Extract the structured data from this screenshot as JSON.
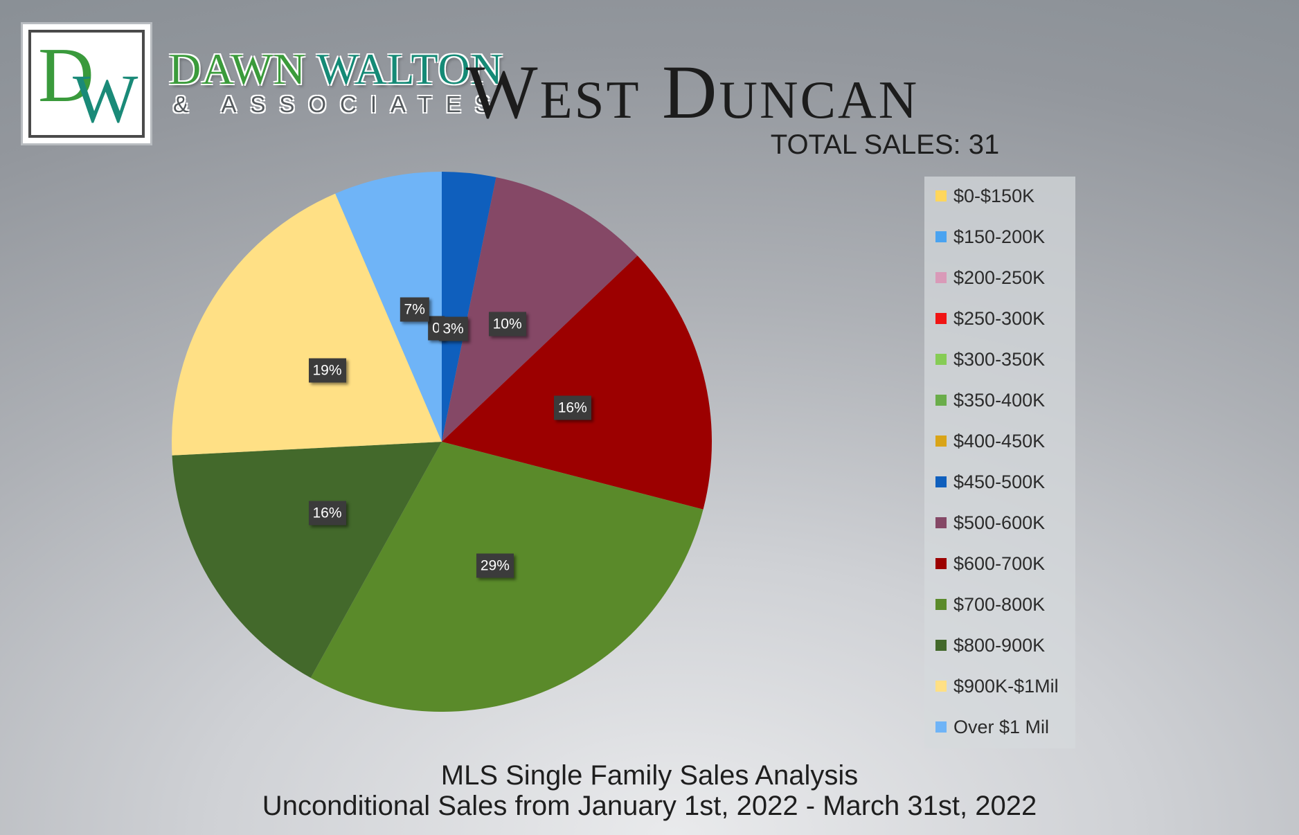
{
  "branding": {
    "logo_letters": "DW",
    "name_part1": "DAWN ",
    "name_part2": "WALTON",
    "tagline": "& ASSOCIATES"
  },
  "header": {
    "title": "West Duncan",
    "total_sales": "TOTAL SALES: 31"
  },
  "footer": {
    "line1": "MLS Single Family Sales Analysis",
    "line2": "Unconditional Sales from January 1st, 2022 - March 31st, 2022"
  },
  "chart_data": {
    "type": "pie",
    "title": "West Duncan",
    "total": 31,
    "legend_position": "right",
    "slices": [
      {
        "name": "$0-$150K",
        "value": 0,
        "label": "",
        "color": "#ffd65c"
      },
      {
        "name": "$150-200K",
        "value": 0,
        "label": "",
        "color": "#4aa3f0"
      },
      {
        "name": "$200-250K",
        "value": 0,
        "label": "",
        "color": "#d99ab8"
      },
      {
        "name": "$250-300K",
        "value": 0,
        "label": "",
        "color": "#f01414"
      },
      {
        "name": "$300-350K",
        "value": 0,
        "label": "",
        "color": "#86cc55"
      },
      {
        "name": "$350-400K",
        "value": 0,
        "label": "",
        "color": "#6aad4a"
      },
      {
        "name": "$400-450K",
        "value": 0,
        "label": "0",
        "color": "#d9a418"
      },
      {
        "name": "$450-500K",
        "value": 1,
        "label": "3%",
        "color": "#0f5fbd"
      },
      {
        "name": "$500-600K",
        "value": 3,
        "label": "10%",
        "color": "#854866"
      },
      {
        "name": "$600-700K",
        "value": 5,
        "label": "16%",
        "color": "#9c0000"
      },
      {
        "name": "$700-800K",
        "value": 9,
        "label": "29%",
        "color": "#5a8a2a"
      },
      {
        "name": "$800-900K",
        "value": 5,
        "label": "16%",
        "color": "#43692b"
      },
      {
        "name": "$900K-$1Mil",
        "value": 6,
        "label": "19%",
        "color": "#ffe085"
      },
      {
        "name": "Over $1 Mil",
        "value": 2,
        "label": "7%",
        "color": "#6fb4f7"
      }
    ]
  }
}
